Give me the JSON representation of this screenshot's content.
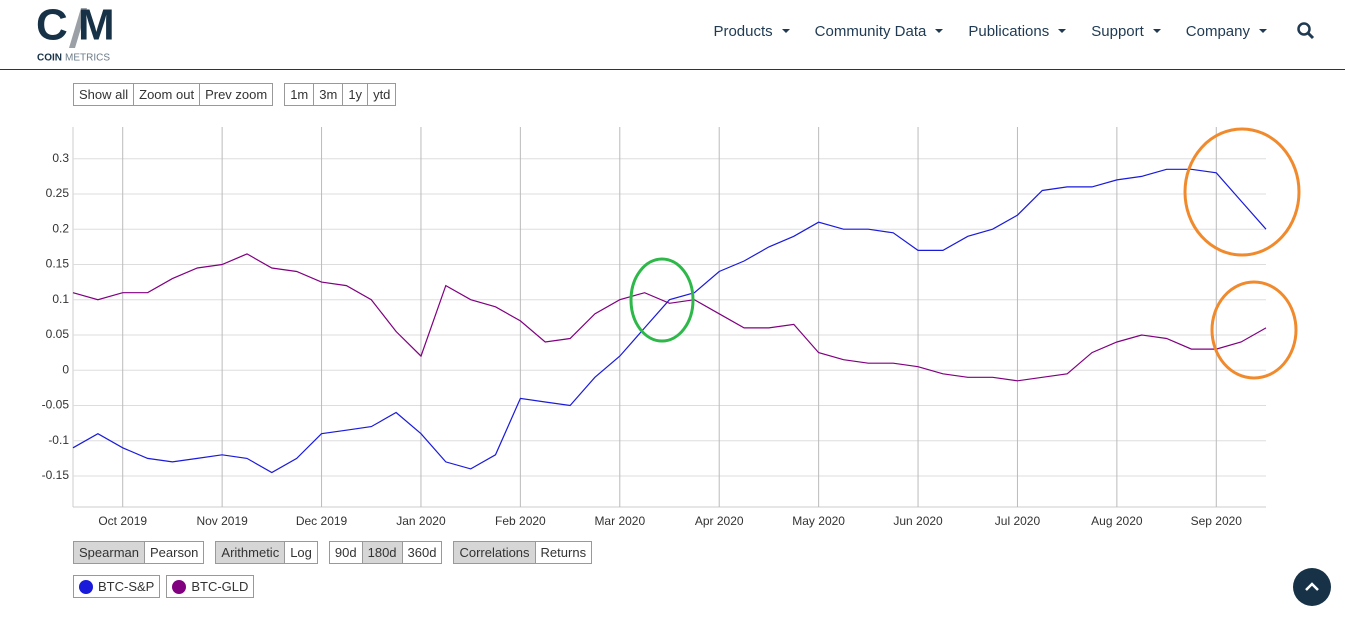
{
  "header": {
    "logo_left": "C",
    "logo_right": "M",
    "brand_bold": "COIN",
    "brand_light": "METRICS",
    "menu": [
      "Products",
      "Community Data",
      "Publications",
      "Support",
      "Company"
    ]
  },
  "toolbar": {
    "top": [
      {
        "buttons": [
          "Show all",
          "Zoom out",
          "Prev zoom"
        ]
      },
      {
        "buttons": [
          "1m",
          "3m",
          "1y",
          "ytd"
        ]
      }
    ],
    "bottom": [
      {
        "buttons": [
          "Spearman",
          "Pearson"
        ],
        "active": 0
      },
      {
        "buttons": [
          "Arithmetic",
          "Log"
        ],
        "active": 0
      },
      {
        "buttons": [
          "90d",
          "180d",
          "360d"
        ],
        "active": 1
      },
      {
        "buttons": [
          "Correlations",
          "Returns"
        ],
        "active": 0
      }
    ]
  },
  "chart_data": {
    "type": "line",
    "categories": [
      null,
      null,
      "Oct 2019",
      null,
      null,
      null,
      "Nov 2019",
      null,
      null,
      null,
      "Dec 2019",
      null,
      null,
      null,
      "Jan 2020",
      null,
      null,
      null,
      "Feb 2020",
      null,
      null,
      null,
      "Mar 2020",
      null,
      null,
      null,
      "Apr 2020",
      null,
      null,
      null,
      "May 2020",
      null,
      null,
      null,
      "Jun 2020",
      null,
      null,
      null,
      "Jul 2020",
      null,
      null,
      null,
      "Aug 2020",
      null,
      null,
      null,
      "Sep 2020",
      null,
      null
    ],
    "series": [
      {
        "name": "BTC-S&P",
        "color": "#1a1adb",
        "values": [
          -0.11,
          -0.09,
          -0.11,
          -0.125,
          -0.13,
          -0.125,
          -0.12,
          -0.125,
          -0.145,
          -0.125,
          -0.09,
          -0.085,
          -0.08,
          -0.06,
          -0.09,
          -0.13,
          -0.14,
          -0.12,
          -0.04,
          -0.045,
          -0.05,
          -0.01,
          0.02,
          0.06,
          0.1,
          0.11,
          0.14,
          0.155,
          0.175,
          0.19,
          0.21,
          0.2,
          0.2,
          0.195,
          0.17,
          0.17,
          0.19,
          0.2,
          0.22,
          0.255,
          0.26,
          0.26,
          0.27,
          0.275,
          0.285,
          0.285,
          0.28,
          0.24,
          0.2
        ]
      },
      {
        "name": "BTC-GLD",
        "color": "#800080",
        "values": [
          0.11,
          0.1,
          0.11,
          0.11,
          0.13,
          0.145,
          0.15,
          0.165,
          0.145,
          0.14,
          0.125,
          0.12,
          0.1,
          0.055,
          0.02,
          0.12,
          0.1,
          0.09,
          0.07,
          0.04,
          0.045,
          0.08,
          0.1,
          0.11,
          0.095,
          0.1,
          0.08,
          0.06,
          0.06,
          0.065,
          0.025,
          0.015,
          0.01,
          0.01,
          0.005,
          -0.005,
          -0.01,
          -0.01,
          -0.015,
          -0.01,
          -0.005,
          0.025,
          0.04,
          0.05,
          0.045,
          0.03,
          0.03,
          0.04,
          0.06
        ]
      }
    ],
    "ylim": [
      -0.194,
      0.345
    ],
    "yticks": [
      -0.15,
      -0.1,
      -0.05,
      0,
      0.05,
      0.1,
      0.15,
      0.2,
      0.25,
      0.3
    ],
    "grid": true
  }
}
